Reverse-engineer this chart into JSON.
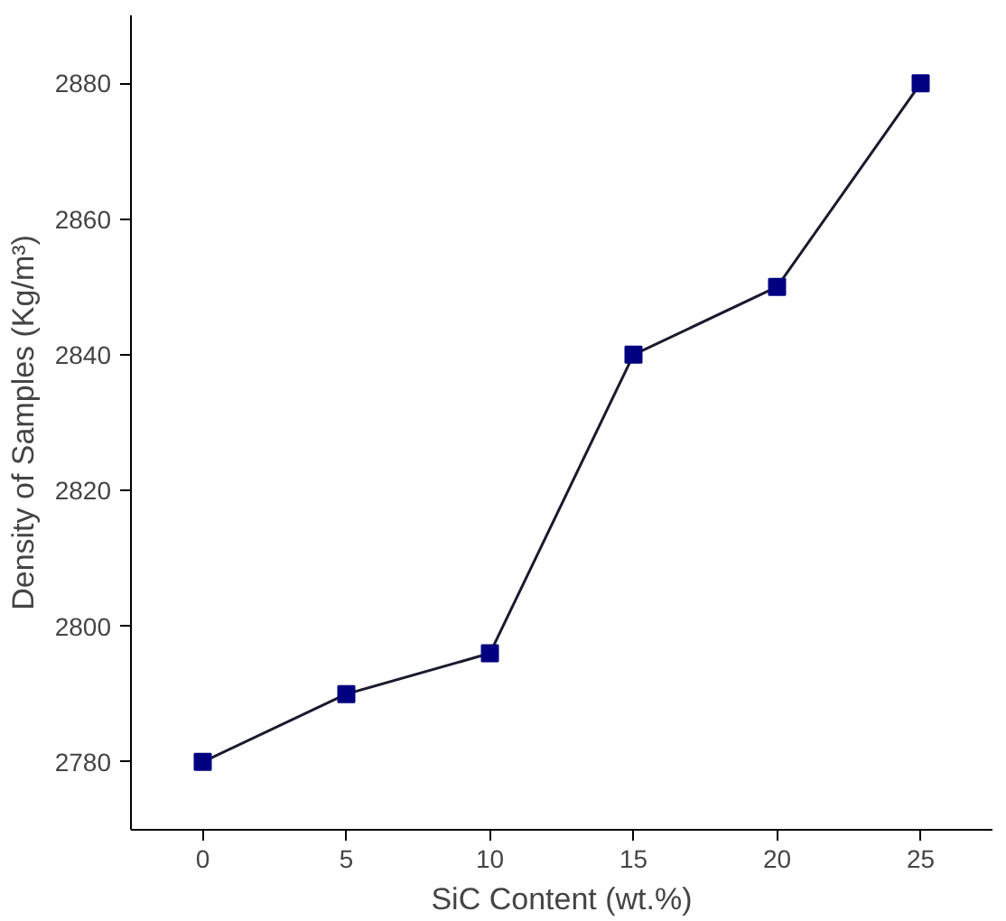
{
  "chart_data": {
    "type": "line",
    "xlabel": "SiC Content (wt.%)",
    "ylabel": "Density of Samples (Kg/m³)",
    "x": [
      0,
      5,
      10,
      15,
      20,
      25
    ],
    "series": [
      {
        "color": "#000080",
        "values": [
          2780,
          2790,
          2796,
          2840,
          2850,
          2880
        ]
      }
    ],
    "xlim": [
      -2.5,
      27.5
    ],
    "ylim": [
      2770,
      2890
    ],
    "xticks": [
      0,
      5,
      10,
      15,
      20,
      25
    ],
    "yticks": [
      2780,
      2800,
      2820,
      2840,
      2860,
      2880
    ],
    "marker": "square",
    "line_style": "solid",
    "grid": false
  }
}
